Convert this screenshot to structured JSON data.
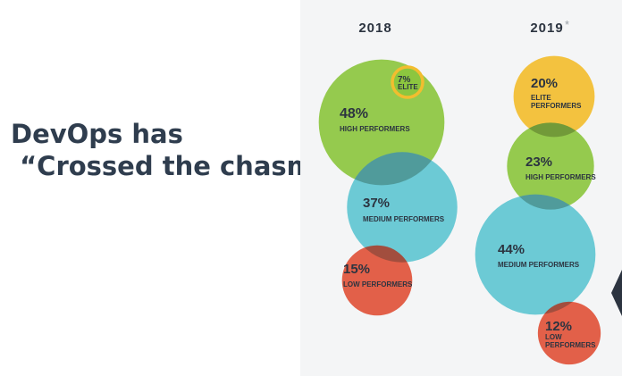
{
  "headline": {
    "line1": "DevOps has",
    "line2": " “Crossed the chasm”"
  },
  "colors": {
    "elite": "#f2bd2f",
    "high": "#8cc63f",
    "medium": "#5fc6d1",
    "low": "#e0533a",
    "overlap": "#2f9a5a"
  },
  "chart_data": {
    "type": "bubble",
    "years": [
      {
        "label": "2018",
        "star": "",
        "groups": [
          {
            "key": "high",
            "value": 48,
            "pct": "48%",
            "label": [
              "HIGH PERFORMERS"
            ]
          },
          {
            "key": "elite",
            "value": 7,
            "pct": "7%",
            "label": [
              "ELITE"
            ]
          },
          {
            "key": "medium",
            "value": 37,
            "pct": "37%",
            "label": [
              "MEDIUM PERFORMERS"
            ]
          },
          {
            "key": "low",
            "value": 15,
            "pct": "15%",
            "label": [
              "LOW PERFORMERS"
            ]
          }
        ]
      },
      {
        "label": "2019",
        "star": "*",
        "groups": [
          {
            "key": "elite",
            "value": 20,
            "pct": "20%",
            "label": [
              "ELITE",
              "PERFORMERS"
            ]
          },
          {
            "key": "high",
            "value": 23,
            "pct": "23%",
            "label": [
              "HIGH PERFORMERS"
            ]
          },
          {
            "key": "medium",
            "value": 44,
            "pct": "44%",
            "label": [
              "MEDIUM PERFORMERS"
            ]
          },
          {
            "key": "low",
            "value": 12,
            "pct": "12%",
            "label": [
              "LOW",
              "PERFORMERS"
            ]
          }
        ]
      }
    ]
  }
}
